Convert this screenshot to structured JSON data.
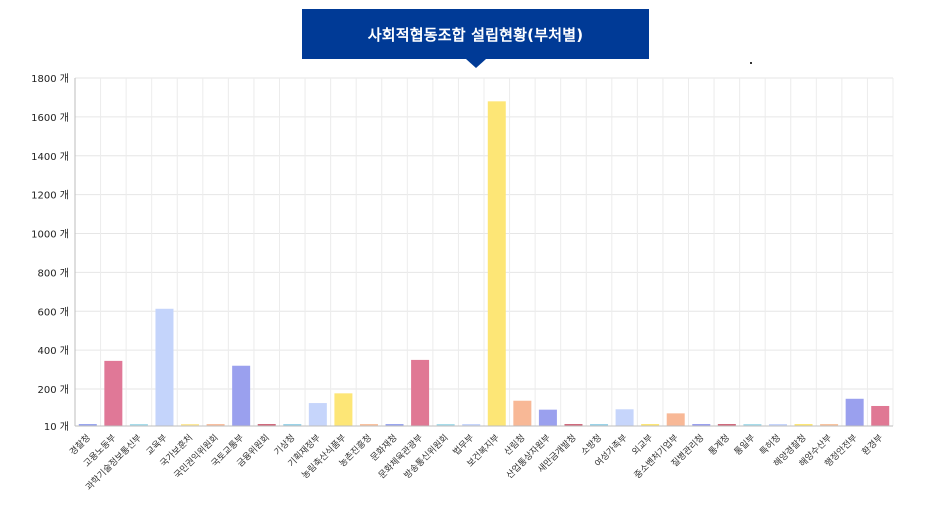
{
  "title": "사회적협동조합 설립현황(부처별)",
  "chart_data": {
    "type": "bar",
    "title": "사회적협동조합 설립현황(부처별)",
    "unit": "개",
    "yticks": [
      10,
      200,
      400,
      600,
      800,
      1000,
      1200,
      1400,
      1600,
      1800
    ],
    "ytick_labels": [
      "10 개",
      "200 개",
      "400 개",
      "600 개",
      "800 개",
      "1000 개",
      "1200 개",
      "1400 개",
      "1600 개",
      "1800 개"
    ],
    "ylim": [
      10,
      1800
    ],
    "grid": true,
    "categories": [
      "경찰청",
      "고용노동부",
      "과학기술정보통신부",
      "교육부",
      "국가보훈처",
      "국민권익위원회",
      "국토교통부",
      "금융위원회",
      "기상청",
      "기획재정부",
      "농림축산식품부",
      "농촌진흥청",
      "문화재청",
      "문화체육관광부",
      "방송통신위원회",
      "법무부",
      "보건복지부",
      "산림청",
      "산업통상자원부",
      "새만금개발청",
      "소방청",
      "여성가족부",
      "외교부",
      "중소벤처기업부",
      "질병관리청",
      "통계청",
      "통일부",
      "특허청",
      "해양경찰청",
      "해양수산부",
      "행정안전부",
      "환경부"
    ],
    "values": [
      17,
      345,
      14,
      613,
      13,
      12,
      320,
      14,
      14,
      128,
      178,
      13,
      14,
      350,
      13,
      13,
      1680,
      140,
      94,
      13,
      14,
      96,
      12,
      75,
      15,
      17,
      12,
      13,
      13,
      12,
      150,
      113
    ],
    "colors": [
      "#9aa6ee",
      "#e07897",
      "#a8dcea",
      "#c4d4fb",
      "#fde89a",
      "#f8bfa0",
      "#9aa0ee",
      "#d06a7d",
      "#9bd3e8",
      "#c6d5fb",
      "#fde676",
      "#f9c2a0",
      "#9aa6ee",
      "#e07894",
      "#a8dcea",
      "#c6d5fb",
      "#fde676",
      "#f8b896",
      "#9aa0ee",
      "#d06a7d",
      "#9bd3e8",
      "#c6d5fb",
      "#fde676",
      "#f8b896",
      "#9aa0ee",
      "#d06a7d",
      "#a8dcea",
      "#c6d5fb",
      "#fde676",
      "#f8c4a0",
      "#9aa0ee",
      "#e07894"
    ]
  }
}
